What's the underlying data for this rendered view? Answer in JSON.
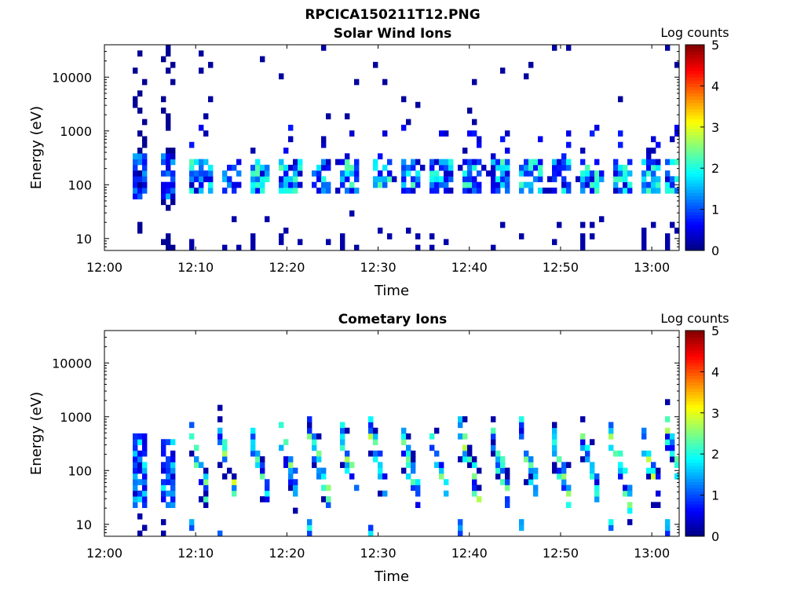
{
  "figure": {
    "title": "RPCICA150211T12.PNG"
  },
  "colors": {
    "jet": [
      "#000080",
      "#0000ff",
      "#0080ff",
      "#00ffff",
      "#80ff80",
      "#ffff00",
      "#ff8000",
      "#ff0000",
      "#800000"
    ]
  },
  "chart_data": [
    {
      "type": "heatmap",
      "title": "Solar Wind Ions",
      "xlabel": "Time",
      "ylabel": "Energy (eV)",
      "y_scale": "log",
      "ylim_eV": [
        6,
        40000
      ],
      "xlim": [
        "12:00",
        "13:03"
      ],
      "x_ticks": [
        "12:00",
        "12:10",
        "12:20",
        "12:30",
        "12:40",
        "12:50",
        "13:00"
      ],
      "y_ticks": [
        {
          "value": 10,
          "label": "10"
        },
        {
          "value": 100,
          "label": "100"
        },
        {
          "value": 1000,
          "label": "1000"
        },
        {
          "value": 10000,
          "label": "10000"
        }
      ],
      "colorbar": {
        "label": "Log counts",
        "range": [
          0,
          5
        ],
        "ticks": [
          "0",
          "1",
          "2",
          "3",
          "4",
          "5"
        ]
      },
      "cycle_start_minutes": [
        9.5,
        12.8,
        16.1,
        19.3,
        22.6,
        25.9,
        29.2,
        32.5,
        35.8,
        39.1,
        42.4,
        45.7,
        49.0,
        52.3,
        55.6,
        58.9,
        61.5
      ],
      "burst_minutes": [
        [
          3.0,
          4.6,
          1.2
        ],
        [
          6.0,
          8.0,
          1.2
        ]
      ],
      "band_eV": [
        70,
        320
      ],
      "peak_log_counts": 2.0
    },
    {
      "type": "heatmap",
      "title": "Cometary Ions",
      "xlabel": "Time",
      "ylabel": "Energy (eV)",
      "y_scale": "log",
      "ylim_eV": [
        6,
        40000
      ],
      "xlim": [
        "12:00",
        "13:03"
      ],
      "x_ticks": [
        "12:00",
        "12:10",
        "12:20",
        "12:30",
        "12:40",
        "12:50",
        "13:00"
      ],
      "y_ticks": [
        {
          "value": 10,
          "label": "10"
        },
        {
          "value": 100,
          "label": "100"
        },
        {
          "value": 1000,
          "label": "1000"
        },
        {
          "value": 10000,
          "label": "10000"
        }
      ],
      "colorbar": {
        "label": "Log counts",
        "range": [
          0,
          5
        ],
        "ticks": [
          "0",
          "1",
          "2",
          "3",
          "4",
          "5"
        ]
      },
      "cycle_start_minutes": [
        9.3,
        12.5,
        15.8,
        19.1,
        22.4,
        25.7,
        29.0,
        32.3,
        35.6,
        38.9,
        42.2,
        45.5,
        48.8,
        52.1,
        55.4,
        58.7,
        61.6
      ],
      "burst_minutes": [
        [
          3.0,
          4.6,
          1.6
        ],
        [
          6.0,
          8.0,
          1.6
        ]
      ],
      "sweep_eV": [
        600,
        30
      ],
      "peak_log_counts": 2.6
    }
  ]
}
